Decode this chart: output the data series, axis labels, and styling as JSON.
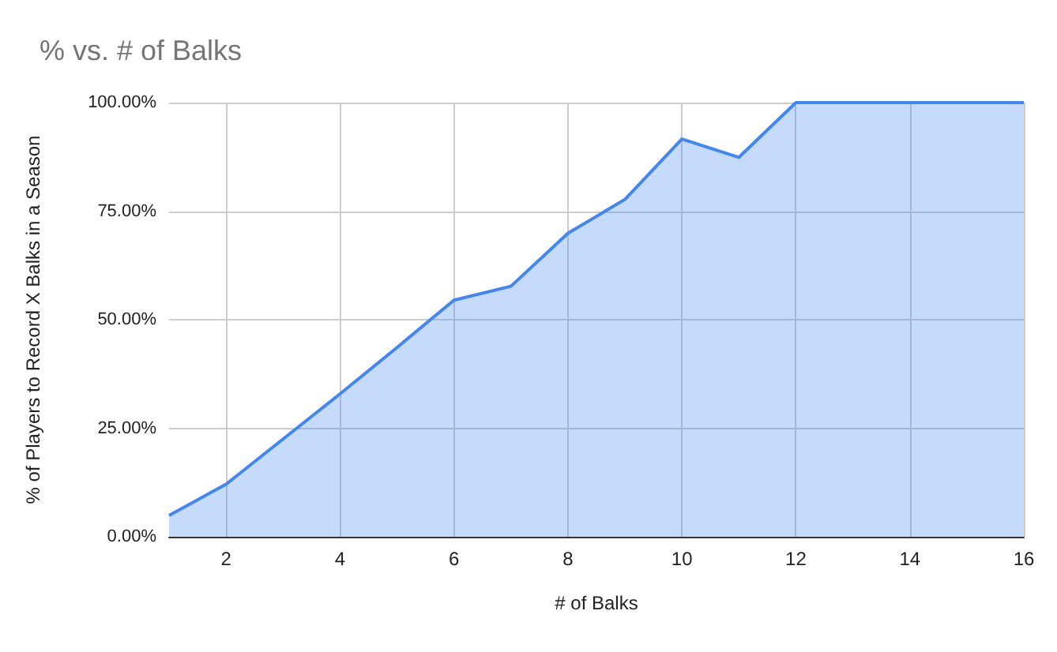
{
  "chart_data": {
    "type": "area",
    "title": "% vs. # of Balks",
    "xlabel": "# of Balks",
    "ylabel": "% of Players to Record X Balks in a Season",
    "x": [
      1,
      2,
      3,
      4,
      5,
      6,
      7,
      8,
      9,
      10,
      11,
      12,
      13,
      14,
      15,
      16
    ],
    "series": [
      {
        "color": "#4285f4",
        "values": [
          4.9,
          12.1,
          22.5,
          32.9,
          43.6,
          54.5,
          57.7,
          69.9,
          77.7,
          91.6,
          87.4,
          100,
          100,
          100,
          100,
          100
        ]
      }
    ],
    "xlim": [
      1,
      16
    ],
    "xticks": [
      2,
      4,
      6,
      8,
      10,
      12,
      14,
      16
    ],
    "ylim": [
      0,
      100
    ],
    "yticks": [
      {
        "value": 0,
        "label": "0.00%"
      },
      {
        "value": 25,
        "label": "25.00%"
      },
      {
        "value": 50,
        "label": "50.00%"
      },
      {
        "value": 75,
        "label": "75.00%"
      },
      {
        "value": 100,
        "label": "100.00%"
      }
    ],
    "grid": true,
    "marker": "none",
    "line_style": "solid"
  }
}
